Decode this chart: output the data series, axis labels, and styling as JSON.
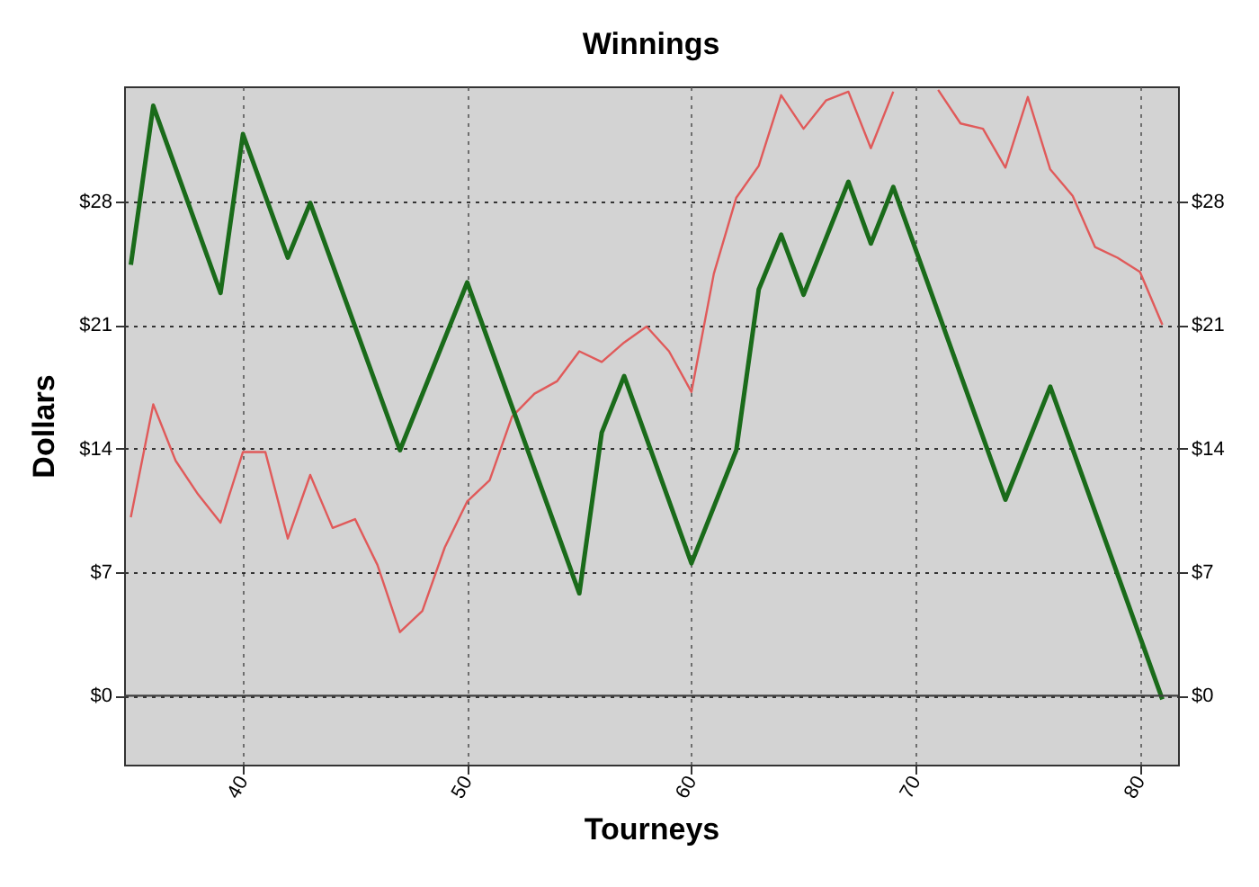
{
  "chart_data": {
    "type": "line",
    "title": "Winnings",
    "xlabel": "Tourneys",
    "ylabel": "Dollars",
    "xlim": [
      34.7,
      81.7
    ],
    "xticks": [
      40,
      50,
      60,
      70,
      80
    ],
    "ylim": [
      -3.9,
      34.5
    ],
    "yticks": [
      {
        "value": 0,
        "label": "$0"
      },
      {
        "value": 7,
        "label": "$7"
      },
      {
        "value": 14,
        "label": "$14"
      },
      {
        "value": 21,
        "label": "$21"
      },
      {
        "value": 28,
        "label": "$28"
      }
    ],
    "y2lim": [
      -3.9,
      34.5
    ],
    "y2ticks": [
      {
        "value": 0,
        "label": "$0"
      },
      {
        "value": 7,
        "label": "$7"
      },
      {
        "value": 14,
        "label": "$14"
      },
      {
        "value": 21,
        "label": "$21"
      },
      {
        "value": 28,
        "label": "$28"
      }
    ],
    "grid": true,
    "marker": "none",
    "line_style": "solid",
    "ref_lines": [
      {
        "axis": "y",
        "value": 0,
        "color": "#404040"
      }
    ],
    "series": [
      {
        "color": "#e05a5a",
        "x": [
          35,
          36,
          37,
          38,
          39,
          40,
          41,
          42,
          43,
          44,
          45,
          46,
          47,
          48,
          49,
          50,
          51,
          52,
          53,
          54,
          55,
          56,
          57,
          58,
          59,
          60,
          61,
          62,
          63,
          64,
          65,
          66,
          67,
          68,
          69,
          70,
          71,
          72,
          73,
          74,
          75,
          76,
          77,
          78,
          79,
          80,
          81
        ],
        "values": [
          10.1,
          16.5,
          13.3,
          11.4,
          9.8,
          13.8,
          13.8,
          8.9,
          12.5,
          9.5,
          10.0,
          7.4,
          3.6,
          4.8,
          8.4,
          11.0,
          12.2,
          15.8,
          17.1,
          17.8,
          19.5,
          18.9,
          20.0,
          20.9,
          19.5,
          17.2,
          23.9,
          28.2,
          30.0,
          34.0,
          32.1,
          33.7,
          34.2,
          31.0,
          34.2,
          null,
          34.3,
          32.4,
          32.1,
          29.9,
          33.9,
          29.8,
          28.3,
          25.4,
          24.8,
          24.0,
          21.0
        ]
      },
      {
        "color": "#1a6b1a",
        "x": [
          35,
          36,
          39,
          40,
          42,
          43,
          47,
          50,
          55,
          56,
          57,
          60,
          62,
          63,
          64,
          65,
          67,
          68,
          69,
          74,
          76,
          81
        ],
        "values": [
          24.4,
          33.4,
          22.8,
          31.8,
          24.8,
          27.9,
          13.9,
          23.4,
          5.8,
          14.9,
          18.1,
          7.5,
          13.9,
          23.0,
          26.1,
          22.7,
          29.1,
          25.6,
          28.8,
          11.1,
          17.5,
          -0.2
        ]
      }
    ]
  }
}
